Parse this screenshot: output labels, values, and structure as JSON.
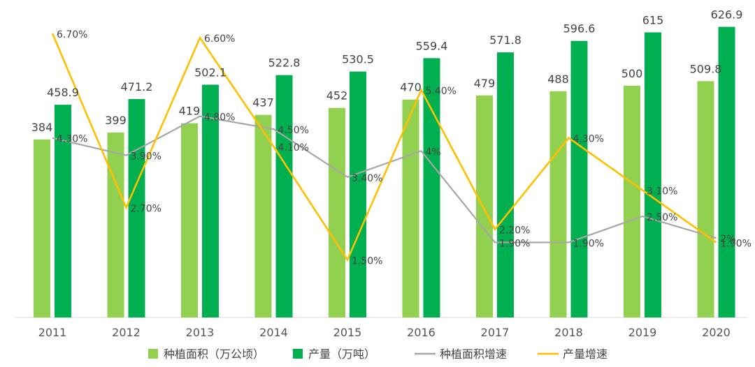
{
  "chart_data": {
    "type": "bar",
    "categories": [
      "2011",
      "2012",
      "2013",
      "2014",
      "2015",
      "2016",
      "2017",
      "2018",
      "2019",
      "2020"
    ],
    "series": [
      {
        "name": "种植面积（万公顷）",
        "kind": "bar",
        "axis": "left",
        "color": "#92d050",
        "values": [
          384,
          399,
          419,
          437,
          452,
          470,
          479,
          488,
          500,
          509.8
        ],
        "labels": [
          "384",
          "399",
          "419",
          "437",
          "452",
          "470",
          "479",
          "488",
          "500",
          "509.8"
        ]
      },
      {
        "name": "产量（万吨）",
        "kind": "bar",
        "axis": "left",
        "color": "#00b050",
        "values": [
          458.9,
          471.2,
          502.1,
          522.8,
          530.5,
          559.4,
          571.8,
          596.6,
          615,
          626.9
        ],
        "labels": [
          "458.9",
          "471.2",
          "502.1",
          "522.8",
          "530.5",
          "559.4",
          "571.8",
          "596.6",
          "615",
          "626.9"
        ]
      },
      {
        "name": "种植面积增速",
        "kind": "line",
        "axis": "right",
        "color": "#a6a6a6",
        "values": [
          4.3,
          3.9,
          4.8,
          4.5,
          3.4,
          4.0,
          1.9,
          1.9,
          2.5,
          2.0
        ],
        "labels": [
          "4.30%",
          "3.90%",
          "4.80%",
          "4.50%",
          "3.40%",
          "4%",
          "1.90%",
          "1.90%",
          "2.50%",
          "2%"
        ]
      },
      {
        "name": "产量增速",
        "kind": "line",
        "axis": "right",
        "color": "#ffc000",
        "values": [
          6.7,
          2.7,
          6.6,
          4.1,
          1.5,
          5.4,
          2.2,
          4.3,
          3.1,
          1.9
        ],
        "labels": [
          "6.70%",
          "2.70%",
          "6.60%",
          "4.10%",
          "1.50%",
          "5.40%",
          "2.20%",
          "4.30%",
          "3.10%",
          "1.90%"
        ]
      }
    ],
    "legend_position": "bottom",
    "grid": false
  }
}
